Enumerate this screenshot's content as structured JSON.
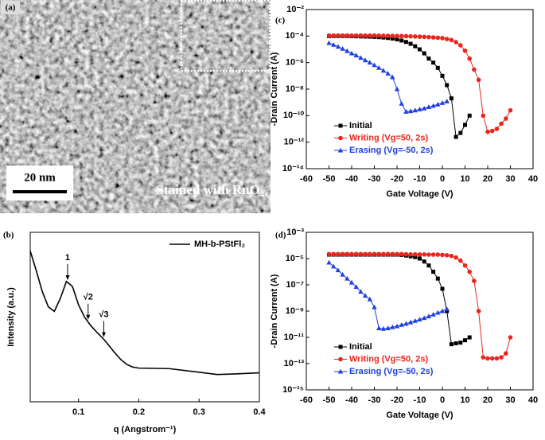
{
  "image_panel": {
    "label": "(a)",
    "scale_bar": "20 nm",
    "caption": "Stained with RuO₄"
  },
  "chart_data": [
    {
      "type": "line",
      "panel_label": "(b)",
      "x_label": "q (Angstrom⁻¹)",
      "y_label": "Intensity (a.u.)",
      "x": [
        0.02,
        0.03,
        0.04,
        0.05,
        0.06,
        0.07,
        0.08,
        0.09,
        0.1,
        0.11,
        0.12,
        0.13,
        0.14,
        0.15,
        0.16,
        0.17,
        0.18,
        0.19,
        0.2,
        0.25,
        0.3,
        0.33,
        0.36,
        0.4
      ],
      "series": [
        {
          "name": "MH-b-PStFl₂",
          "color": "#000000",
          "values": [
            18.1,
            10.6,
            6.0,
            3.96,
            3.5,
            5.0,
            7.9,
            6.9,
            4.2,
            3.0,
            2.4,
            2.0,
            1.7,
            1.4,
            1.14,
            0.95,
            0.83,
            0.77,
            0.75,
            0.74,
            0.67,
            0.63,
            0.64,
            0.66
          ]
        }
      ],
      "xlim": [
        0.02,
        0.4
      ],
      "xticks": [
        0.1,
        0.2,
        0.3,
        0.4
      ],
      "ylim": [
        0.3,
        30
      ],
      "y_scale": "log",
      "legend": "upper right",
      "annotations": [
        {
          "text": "1",
          "x": 0.082
        },
        {
          "text": "√2",
          "x": 0.116
        },
        {
          "text": "√3",
          "x": 0.142
        }
      ]
    },
    {
      "type": "line",
      "panel_label": "(c)",
      "x_label": "Gate Voltage (V)",
      "y_label": "-Drain Current (A)",
      "x": [
        -50,
        -48,
        -46,
        -44,
        -42,
        -40,
        -38,
        -36,
        -34,
        -32,
        -30,
        -28,
        -26,
        -24,
        -22,
        -20,
        -18,
        -16,
        -14,
        -12,
        -10,
        -8,
        -6,
        -4,
        -2,
        0,
        2,
        4,
        6,
        8,
        10,
        12,
        14,
        16,
        18,
        20,
        22,
        24,
        26,
        28,
        30
      ],
      "series": [
        {
          "name": "Initial",
          "color": "#000000",
          "marker": "square",
          "values": [
            0.0001,
            0.0001,
            0.0001,
            0.0001,
            0.0001,
            9.8e-05,
            9.6e-05,
            9.4e-05,
            9.2e-05,
            9e-05,
            8.7e-05,
            8.3e-05,
            7.8e-05,
            7.2e-05,
            6.5e-05,
            5.6e-05,
            4.6e-05,
            3.6e-05,
            2.6e-05,
            1.7e-05,
            1e-05,
            5e-06,
            2e-06,
            1e-06,
            4e-07,
            1e-07,
            2e-08,
            2e-09,
            2.5e-12,
            5e-12,
            2e-11,
            1e-10,
            null,
            null,
            null,
            null,
            null,
            null,
            null,
            null,
            null
          ]
        },
        {
          "name": "Writing (Vg=50, 2s)",
          "color": "#e8261c",
          "marker": "circle",
          "values": [
            0.00011,
            0.00011,
            0.00011,
            0.00011,
            0.00011,
            0.00011,
            0.00011,
            0.00011,
            0.00011,
            0.00011,
            0.00011,
            0.000108,
            0.000106,
            0.000105,
            0.000104,
            0.000102,
            0.0001,
            9.8e-05,
            9.6e-05,
            9.3e-05,
            9e-05,
            8.7e-05,
            8.3e-05,
            7.9e-05,
            7.5e-05,
            7e-05,
            6e-05,
            5e-05,
            3.5e-05,
            2e-05,
            8e-06,
            2e-06,
            3e-07,
            5e-08,
            1e-10,
            6e-12,
            7e-12,
            1e-11,
            2.5e-11,
            6e-11,
            2.5e-10
          ]
        },
        {
          "name": "Erasing (Vg=-50, 2s)",
          "color": "#1f3fe0",
          "marker": "triangle",
          "values": [
            3e-05,
            2.2e-05,
            1.6e-05,
            1.1e-05,
            7.5e-06,
            5e-06,
            3.5e-06,
            2.3e-06,
            1.5e-06,
            1e-06,
            6.5e-07,
            4e-07,
            2.5e-07,
            1.5e-07,
            8e-08,
            1e-08,
            8e-10,
            2e-10,
            2.2e-10,
            2.5e-10,
            3e-10,
            3.5e-10,
            4.5e-10,
            5.5e-10,
            7e-10,
            9e-10,
            1.2e-09,
            null,
            null,
            null,
            null,
            null,
            null,
            null,
            null,
            null,
            null,
            null,
            null,
            null,
            null
          ]
        }
      ],
      "xlim": [
        -60,
        40
      ],
      "xticks": [
        -60,
        -50,
        -40,
        -30,
        -20,
        -10,
        0,
        10,
        20,
        30,
        40
      ],
      "ylim": [
        1e-14,
        0.01
      ],
      "y_scale": "log",
      "yticks": [
        {
          "value": 1e-14,
          "label": "10⁻¹⁴"
        },
        {
          "value": 1e-12,
          "label": "10⁻¹²"
        },
        {
          "value": 1e-10,
          "label": "10⁻¹⁰"
        },
        {
          "value": 1e-08,
          "label": "10⁻⁸"
        },
        {
          "value": 1e-06,
          "label": "10⁻⁶"
        },
        {
          "value": 0.0001,
          "label": "10⁻⁴"
        },
        {
          "value": 0.01,
          "label": "10⁻²"
        }
      ],
      "legend": "lower left"
    },
    {
      "type": "line",
      "panel_label": "(d)",
      "x_label": "Gate Voltage (V)",
      "y_label": "-Drain Current (A)",
      "x": [
        -50,
        -48,
        -46,
        -44,
        -42,
        -40,
        -38,
        -36,
        -34,
        -32,
        -30,
        -28,
        -26,
        -24,
        -22,
        -20,
        -18,
        -16,
        -14,
        -12,
        -10,
        -8,
        -6,
        -4,
        -2,
        0,
        2,
        4,
        6,
        8,
        10,
        12,
        14,
        16,
        18,
        20,
        22,
        24,
        26,
        28,
        30
      ],
      "series": [
        {
          "name": "Initial",
          "color": "#000000",
          "marker": "square",
          "values": [
            2e-05,
            2e-05,
            2e-05,
            2e-05,
            2e-05,
            2e-05,
            2e-05,
            2e-05,
            2e-05,
            2e-05,
            2e-05,
            2e-05,
            2e-05,
            2e-05,
            2e-05,
            2e-05,
            1.9e-05,
            1.7e-05,
            1.5e-05,
            1.3e-05,
            1e-05,
            6e-06,
            3e-06,
            1e-06,
            3e-07,
            5e-08,
            1e-09,
            3e-12,
            3.5e-12,
            4e-12,
            6e-12,
            1e-11,
            null,
            null,
            null,
            null,
            null,
            null,
            null,
            null,
            null
          ]
        },
        {
          "name": "Writing (Vg=50, 2s)",
          "color": "#e8261c",
          "marker": "circle",
          "values": [
            2.2e-05,
            2.2e-05,
            2.2e-05,
            2.2e-05,
            2.2e-05,
            2.2e-05,
            2.2e-05,
            2.2e-05,
            2.2e-05,
            2.2e-05,
            2.2e-05,
            2.2e-05,
            2.2e-05,
            2.2e-05,
            2.2e-05,
            2.2e-05,
            2.2e-05,
            2.15e-05,
            2.1e-05,
            2.1e-05,
            2.05e-05,
            2.05e-05,
            2e-05,
            2e-05,
            2e-05,
            1.9e-05,
            1.8e-05,
            1.6e-05,
            1.2e-05,
            7e-06,
            3e-06,
            1e-06,
            2e-07,
            1e-09,
            3e-13,
            2.5e-13,
            2.5e-13,
            2.5e-13,
            3e-13,
            6e-13,
            1e-11
          ]
        },
        {
          "name": "Erasing (Vg=-50, 2s)",
          "color": "#1f3fe0",
          "marker": "triangle",
          "values": [
            5e-06,
            2.5e-06,
            1.3e-06,
            6e-07,
            3e-07,
            1.5e-07,
            7e-08,
            3e-08,
            1.5e-08,
            8e-09,
            2e-09,
            5e-11,
            4.5e-11,
            5e-11,
            6e-11,
            7e-11,
            9e-11,
            1.1e-10,
            1.4e-10,
            1.8e-10,
            2.3e-10,
            3e-10,
            4e-10,
            5.5e-10,
            7.5e-10,
            1e-09,
            1.4e-09,
            null,
            null,
            null,
            null,
            null,
            null,
            null,
            null,
            null,
            null,
            null,
            null,
            null,
            null
          ]
        }
      ],
      "xlim": [
        -60,
        40
      ],
      "xticks": [
        -60,
        -50,
        -40,
        -30,
        -20,
        -10,
        0,
        10,
        20,
        30,
        40
      ],
      "ylim": [
        1e-15,
        0.001
      ],
      "y_scale": "log",
      "yticks": [
        {
          "value": 1e-15,
          "label": "10⁻¹⁵"
        },
        {
          "value": 1e-13,
          "label": "10⁻¹³"
        },
        {
          "value": 1e-11,
          "label": "10⁻¹¹"
        },
        {
          "value": 1e-09,
          "label": "10⁻⁹"
        },
        {
          "value": 1e-07,
          "label": "10⁻⁷"
        },
        {
          "value": 1e-05,
          "label": "10⁻⁵"
        },
        {
          "value": 0.001,
          "label": "10⁻³"
        }
      ],
      "legend": "lower left"
    }
  ]
}
